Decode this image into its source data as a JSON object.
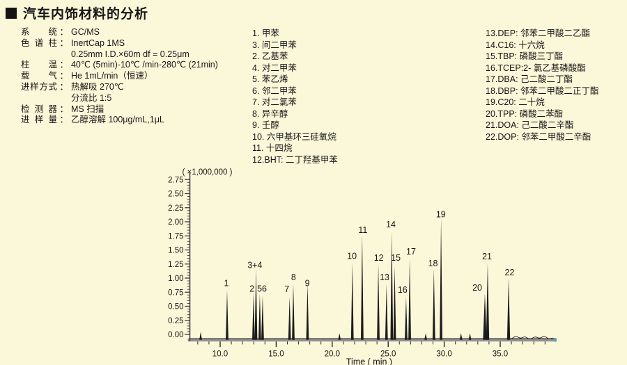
{
  "title": "汽车内饰材料的分析",
  "conditions": [
    {
      "label": "系统",
      "colon": "：",
      "value": "GC/MS"
    },
    {
      "label": "色谱柱",
      "colon": "：",
      "value": "InertCap 1MS"
    },
    {
      "label": "",
      "colon": "",
      "value": "0.25mm I.D.×60m df = 0.25μm"
    },
    {
      "label": "柱温",
      "colon": "：",
      "value": "40℃ (5min)-10℃ /min-280℃ (21min)"
    },
    {
      "label": "载气",
      "colon": "：",
      "value": "He 1mL/min（恒速）"
    },
    {
      "label": "进样方式",
      "colon": "：",
      "value": "热解吸 270℃"
    },
    {
      "label": "",
      "colon": "",
      "value": "分流比 1:5"
    },
    {
      "label": "检测器",
      "colon": "：",
      "value": "MS 扫描"
    },
    {
      "label": "进样量",
      "colon": "：",
      "value": "乙醇溶解 100μg/mL,1μL"
    }
  ],
  "compound_lists": {
    "middle": [
      "1. 甲苯",
      "3. 间二甲苯",
      "2. 乙基苯",
      "4. 对二甲苯",
      "5. 苯乙烯",
      "6. 邻二甲苯",
      "7. 对二氯苯",
      "8. 异辛醇",
      "9. 壬醇",
      "10. 六甲基环三硅氧烷",
      "11. 十四烷",
      "12.BHT: 二丁羟基甲苯"
    ],
    "right": [
      "13.DEP: 邻苯二甲酸二乙酯",
      "14.C16: 十六烷",
      "15.TBP: 磷酸三丁酯",
      "16.TCEP:2- 氯乙基磷酸酯",
      "17.DBA: 己二酸二丁酯",
      "18.DBP: 邻苯二甲酸二正丁酯",
      "19.C20: 二十烷",
      "20.TPP: 磷酸二苯酯",
      "21.DOA: 己二酸二辛酯",
      "22.DOP: 邻苯二甲酸二辛酯"
    ]
  },
  "chart_data": {
    "type": "line",
    "subtype": "gc-chromatogram",
    "xlabel": "Time ( min )",
    "scale_note": "( ×1,000,000 )",
    "x_range": [
      7.3,
      39.8
    ],
    "y_range": [
      0,
      2.87
    ],
    "x_major_ticks": [
      10,
      15,
      20,
      25,
      30,
      35
    ],
    "x_tick_labels": [
      "10.0",
      "15.0",
      "20.0",
      "25.0",
      "30.0",
      "35.0"
    ],
    "x_minor_step": 1,
    "y_major_step": 0.25,
    "y_minor_step": 0.05,
    "y_tick_labels": [
      "0.00",
      "0.25",
      "0.50",
      "0.75",
      "1.00",
      "1.25",
      "1.50",
      "1.75",
      "2.00",
      "2.25",
      "2.50",
      "2.75"
    ],
    "grid": false,
    "trace_color": "#1f1f1f",
    "axis_bar_color": "#939393",
    "end_mark_color": "#3bb8c4",
    "peaks": [
      {
        "label": "1",
        "t": 10.62,
        "h": 0.79,
        "lx": 10.56,
        "lh": 0.91
      },
      {
        "label": "2",
        "t": 12.98,
        "h": 0.73,
        "lx": 12.84,
        "lh": 0.81
      },
      {
        "label": "3+4",
        "t": 13.2,
        "h": 1.16,
        "lx": 13.1,
        "lh": 1.23
      },
      {
        "label": "5",
        "t": 13.54,
        "h": 0.72,
        "lx": 13.52,
        "lh": 0.81
      },
      {
        "label": "6",
        "t": 13.79,
        "h": 0.69,
        "lx": 13.95,
        "lh": 0.81
      },
      {
        "label": "7",
        "t": 16.2,
        "h": 0.67,
        "lx": 15.95,
        "lh": 0.8
      },
      {
        "label": "8",
        "t": 16.53,
        "h": 0.9,
        "lx": 16.55,
        "lh": 1.01
      },
      {
        "label": "9",
        "t": 17.8,
        "h": 0.9,
        "lx": 17.78,
        "lh": 0.91
      },
      {
        "label": "10",
        "t": 21.8,
        "h": 1.27,
        "lx": 21.76,
        "lh": 1.39
      },
      {
        "label": "11",
        "t": 22.68,
        "h": 1.78,
        "lx": 22.74,
        "lh": 1.85
      },
      {
        "label": "12",
        "t": 24.12,
        "h": 1.25,
        "lx": 24.16,
        "lh": 1.36
      },
      {
        "label": "13",
        "t": 24.85,
        "h": 0.89,
        "lx": 24.68,
        "lh": 1.01
      },
      {
        "label": "14",
        "t": 25.32,
        "h": 1.83,
        "lx": 25.24,
        "lh": 1.95
      },
      {
        "label": "15",
        "t": 25.58,
        "h": 1.21,
        "lx": 25.68,
        "lh": 1.36
      },
      {
        "label": "16",
        "t": 26.6,
        "h": 0.67,
        "lx": 26.28,
        "lh": 0.79
      },
      {
        "label": "17",
        "t": 26.92,
        "h": 1.35,
        "lx": 27.04,
        "lh": 1.47
      },
      {
        "label": "18",
        "t": 29.08,
        "h": 1.16,
        "lx": 29.0,
        "lh": 1.26
      },
      {
        "label": "19",
        "t": 29.72,
        "h": 2.07,
        "lx": 29.7,
        "lh": 2.13
      },
      {
        "label": "20",
        "t": 33.63,
        "h": 0.73,
        "lx": 32.95,
        "lh": 0.83,
        "w": 2.6
      },
      {
        "label": "21",
        "t": 33.88,
        "h": 1.27,
        "lx": 33.82,
        "lh": 1.38,
        "w": 2.2
      },
      {
        "label": "22",
        "t": 35.75,
        "h": 1.0,
        "lx": 35.84,
        "lh": 1.1,
        "w": 2.2
      },
      {
        "label": "",
        "t": 8.26,
        "h": 0.045
      },
      {
        "label": "",
        "t": 20.65,
        "h": 0.02
      },
      {
        "label": "",
        "t": 28.35,
        "h": 0.02
      },
      {
        "label": "",
        "t": 31.5,
        "h": 0.025
      },
      {
        "label": "",
        "t": 32.3,
        "h": 0.02
      }
    ],
    "noise_range": [
      35.95,
      39.68
    ]
  }
}
